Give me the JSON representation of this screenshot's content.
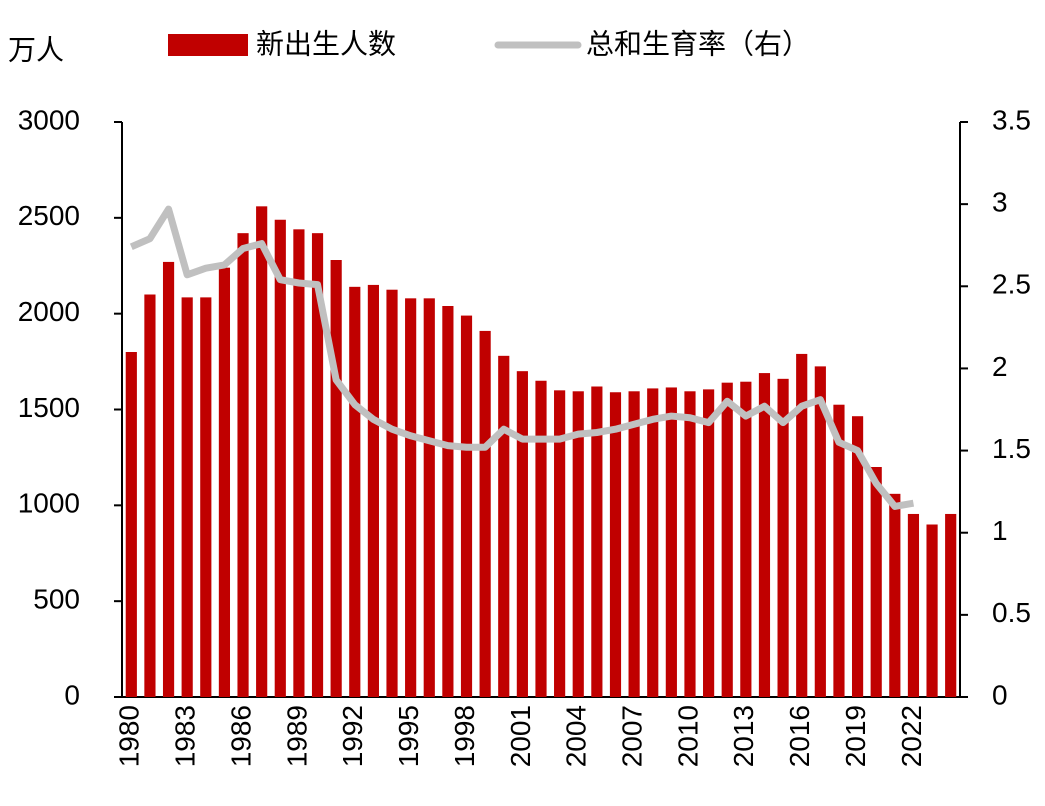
{
  "chart_data": {
    "type": "bar",
    "y_label": "万人",
    "categories": [
      "1980",
      null,
      null,
      "1983",
      null,
      null,
      "1986",
      null,
      null,
      "1989",
      null,
      null,
      "1992",
      null,
      null,
      "1995",
      null,
      null,
      "1998",
      null,
      null,
      "2001",
      null,
      null,
      "2004",
      null,
      null,
      "2007",
      null,
      null,
      "2010",
      null,
      null,
      "2013",
      null,
      null,
      "2016",
      null,
      null,
      "2019",
      null,
      null,
      "2022",
      null,
      null
    ],
    "series": [
      {
        "name": "新出生人数",
        "type": "bar",
        "color": "#c00000",
        "values": [
          1800,
          2100,
          2270,
          2085,
          2085,
          2240,
          2420,
          2560,
          2490,
          2440,
          2420,
          2280,
          2140,
          2150,
          2125,
          2080,
          2080,
          2040,
          1990,
          1910,
          1780,
          1700,
          1650,
          1600,
          1595,
          1620,
          1590,
          1595,
          1610,
          1615,
          1595,
          1605,
          1640,
          1645,
          1690,
          1660,
          1790,
          1725,
          1525,
          1465,
          1200,
          1060,
          955,
          900,
          955
        ]
      },
      {
        "name": "总和生育率（右）",
        "type": "line",
        "axis": "y2",
        "color": "#c0c0c0",
        "values": [
          2.74,
          2.79,
          2.97,
          2.57,
          2.61,
          2.63,
          2.73,
          2.76,
          2.54,
          2.52,
          2.51,
          1.93,
          1.78,
          1.69,
          1.63,
          1.59,
          1.56,
          1.53,
          1.52,
          1.52,
          1.63,
          1.57,
          1.57,
          1.57,
          1.6,
          1.61,
          1.63,
          1.66,
          1.69,
          1.71,
          1.7,
          1.67,
          1.8,
          1.71,
          1.77,
          1.67,
          1.77,
          1.81,
          1.55,
          1.5,
          1.3,
          1.16,
          1.18,
          null,
          null
        ]
      }
    ],
    "ylim": [
      0,
      3000
    ],
    "yticks": [
      0,
      500,
      1000,
      1500,
      2000,
      2500,
      3000
    ],
    "y2lim": [
      0,
      3.5
    ],
    "y2ticks": [
      0,
      0.5,
      1,
      1.5,
      2,
      2.5,
      3,
      3.5
    ],
    "grid": false,
    "legend": "top"
  }
}
